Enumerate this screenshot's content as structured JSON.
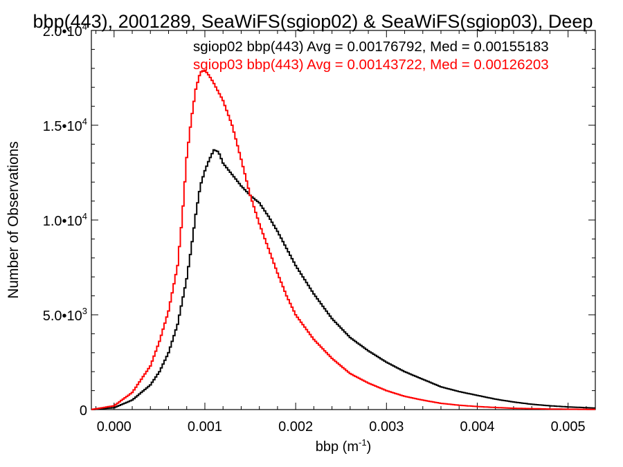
{
  "chart_data": {
    "type": "line",
    "title": "bbp(443), 2001289, SeaWiFS(sgiop02) & SeaWiFS(sgiop03), Deep",
    "xlabel": "bbp (m",
    "xlabel_sup": "-1",
    "xlabel_suffix": ")",
    "ylabel": "Number of Observations",
    "xlim": [
      -0.00025,
      0.0053
    ],
    "ylim": [
      0,
      20000
    ],
    "grid": false,
    "legend_position": "top-right",
    "x_ticks": [
      {
        "value": 0.0,
        "label": "0.000"
      },
      {
        "value": 0.001,
        "label": "0.001"
      },
      {
        "value": 0.002,
        "label": "0.002"
      },
      {
        "value": 0.003,
        "label": "0.003"
      },
      {
        "value": 0.004,
        "label": "0.004"
      },
      {
        "value": 0.005,
        "label": "0.005"
      }
    ],
    "y_ticks": [
      {
        "value": 0,
        "label": "0",
        "exp": ""
      },
      {
        "value": 5000,
        "label": "5.0•10",
        "exp": "3"
      },
      {
        "value": 10000,
        "label": "1.0•10",
        "exp": "4"
      },
      {
        "value": 15000,
        "label": "1.5•10",
        "exp": "4"
      },
      {
        "value": 20000,
        "label": "2.0•10",
        "exp": "4"
      }
    ],
    "series": [
      {
        "name": "sgiop02 bbp(443) Avg = 0.00176792, Med = 0.00155183",
        "color": "#000000",
        "x": [
          -0.00025,
          0.0,
          0.0002,
          0.0004,
          0.0005,
          0.0006,
          0.0007,
          0.0008,
          0.00085,
          0.0009,
          0.00095,
          0.001,
          0.00105,
          0.0011,
          0.00115,
          0.0012,
          0.0013,
          0.0014,
          0.0015,
          0.0016,
          0.0017,
          0.0018,
          0.002,
          0.0022,
          0.0024,
          0.0026,
          0.0028,
          0.003,
          0.0032,
          0.0034,
          0.0036,
          0.0038,
          0.004,
          0.0042,
          0.0044,
          0.0046,
          0.0048,
          0.005,
          0.0053
        ],
        "y": [
          0,
          100,
          500,
          1300,
          2000,
          3000,
          4500,
          6900,
          8500,
          10300,
          11800,
          12600,
          13200,
          13700,
          13600,
          13000,
          12400,
          11800,
          11300,
          10900,
          10200,
          9400,
          7600,
          6100,
          4800,
          3800,
          3100,
          2500,
          2000,
          1600,
          1200,
          950,
          750,
          550,
          400,
          280,
          200,
          140,
          80
        ]
      },
      {
        "name": "sgiop03 bbp(443) Avg = 0.00143722, Med = 0.00126203",
        "color": "#ff0000",
        "x": [
          -0.00025,
          0.0,
          0.0002,
          0.0004,
          0.0005,
          0.0006,
          0.0007,
          0.00075,
          0.0008,
          0.00085,
          0.0009,
          0.00095,
          0.001,
          0.00105,
          0.0011,
          0.0012,
          0.0013,
          0.0014,
          0.0015,
          0.0016,
          0.0017,
          0.0018,
          0.0019,
          0.002,
          0.0022,
          0.0024,
          0.0026,
          0.0028,
          0.003,
          0.0032,
          0.0034,
          0.0036,
          0.0038,
          0.004,
          0.0042,
          0.0044,
          0.0046,
          0.0048,
          0.005,
          0.0053
        ],
        "y": [
          0,
          200,
          900,
          2300,
          3600,
          5200,
          7600,
          10100,
          13300,
          15300,
          16900,
          17800,
          17900,
          17600,
          17200,
          16300,
          15000,
          13200,
          11300,
          9800,
          8500,
          7200,
          6000,
          5000,
          3700,
          2700,
          1900,
          1400,
          1000,
          700,
          500,
          330,
          230,
          160,
          110,
          70,
          50,
          30,
          20,
          10
        ]
      }
    ]
  }
}
